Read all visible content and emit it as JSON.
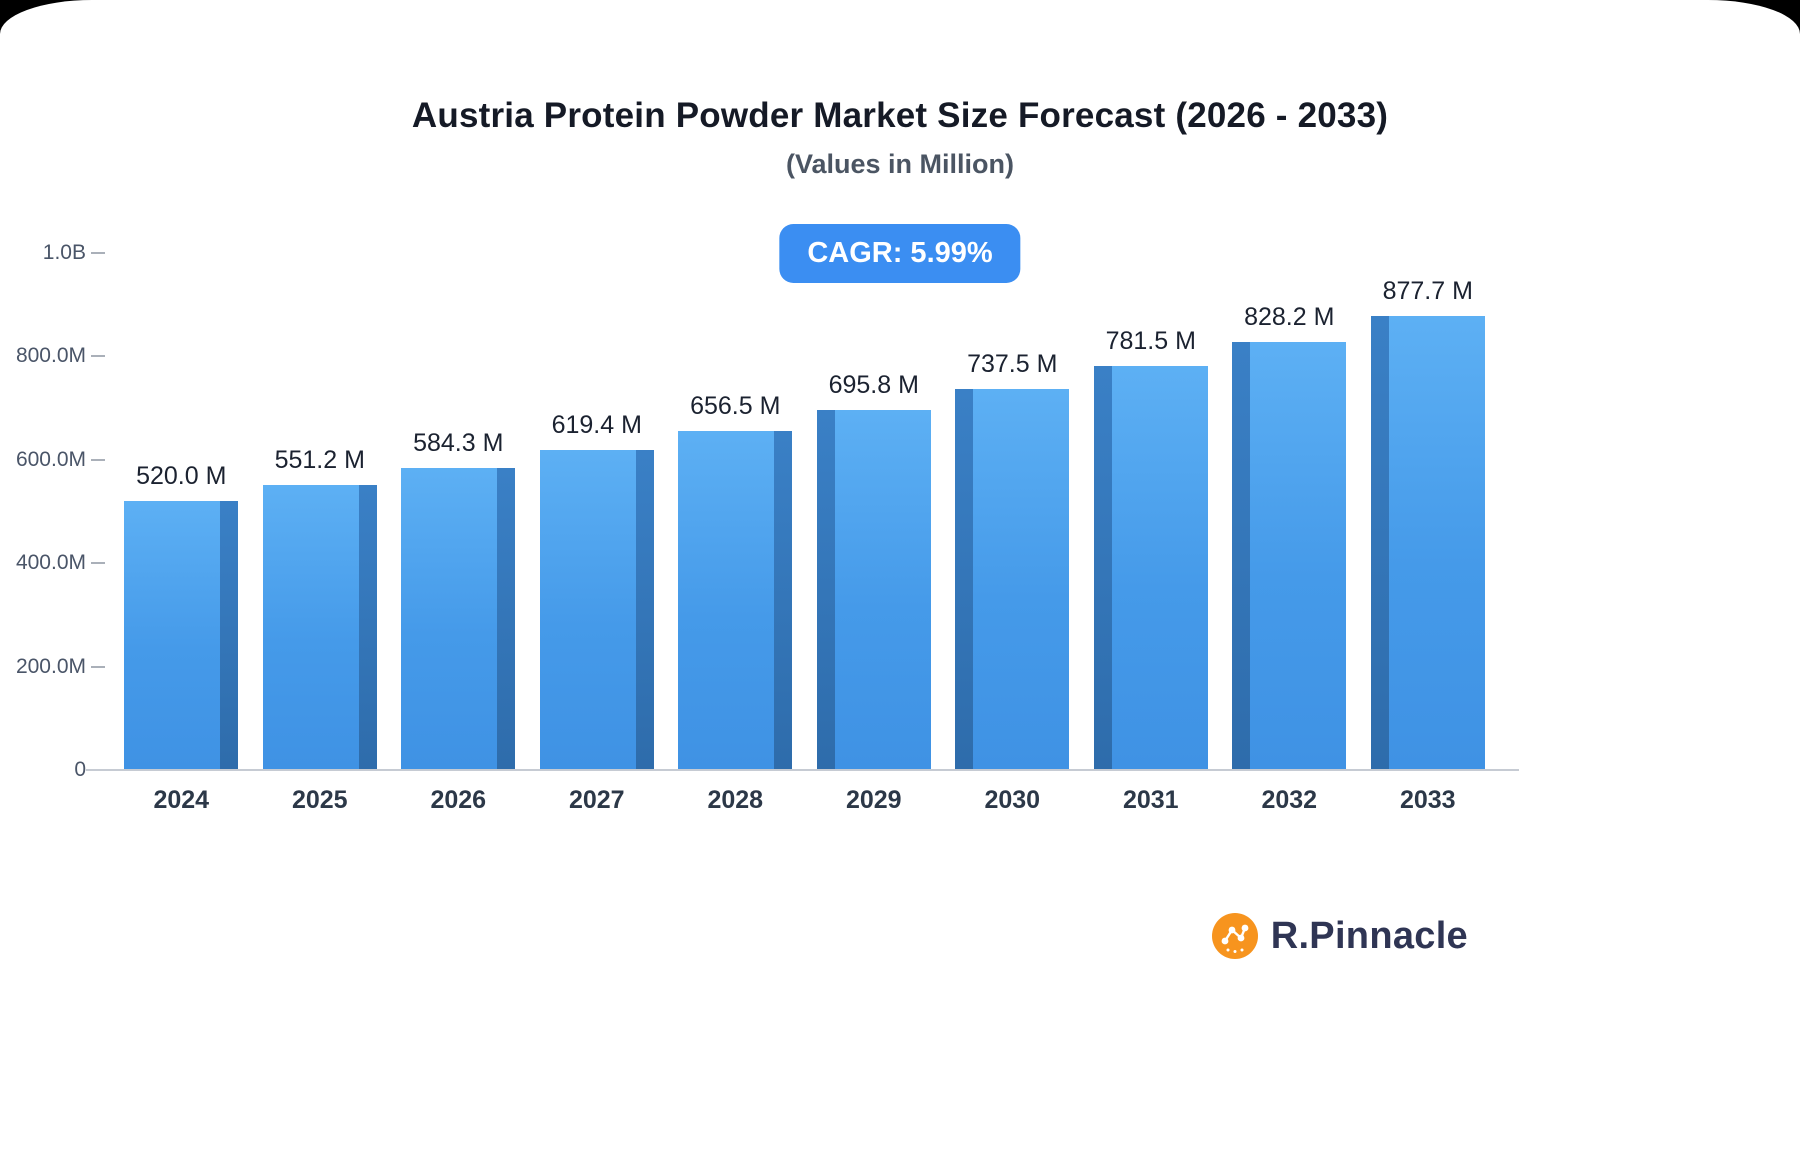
{
  "title": "Austria Protein Powder Market Size Forecast (2026 - 2033)",
  "subtitle": "(Values in Million)",
  "cagr_badge": "CAGR: 5.99%",
  "brand": {
    "name": "R.Pinnacle"
  },
  "colors": {
    "bar_main": "#459ae9",
    "bar_side": "#2e6cab",
    "badge_bg": "#3b8ef2",
    "logo_orange": "#f7941e",
    "brand_text": "#2f3554"
  },
  "chart_data": {
    "type": "bar",
    "title": "Austria Protein Powder Market Size Forecast (2026 - 2033)",
    "subtitle": "(Values in Million)",
    "categories": [
      "2024",
      "2025",
      "2026",
      "2027",
      "2028",
      "2029",
      "2030",
      "2031",
      "2032",
      "2033"
    ],
    "values": [
      520.0,
      551.2,
      584.3,
      619.4,
      656.5,
      695.8,
      737.5,
      781.5,
      828.2,
      877.7
    ],
    "labels": [
      "520.0 M",
      "551.2 M",
      "584.3 M",
      "619.4 M",
      "656.5 M",
      "695.8 M",
      "737.5 M",
      "781.5 M",
      "828.2 M",
      "877.7 M"
    ],
    "unit": "Million",
    "xlabel": "",
    "ylabel": "",
    "ylim": [
      0,
      1000
    ],
    "grid": false,
    "legend": false,
    "y_ticks": [
      {
        "label": "0",
        "value": 0
      },
      {
        "label": "200.0M",
        "value": 200
      },
      {
        "label": "400.0M",
        "value": 400
      },
      {
        "label": "600.0M",
        "value": 600
      },
      {
        "label": "800.0M",
        "value": 800
      },
      {
        "label": "1.0B",
        "value": 1000
      }
    ]
  }
}
